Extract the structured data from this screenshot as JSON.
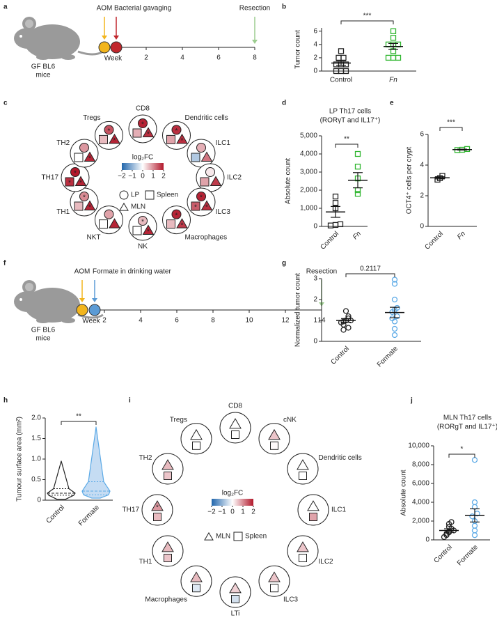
{
  "panel_labels": [
    "a",
    "b",
    "c",
    "d",
    "e",
    "f",
    "g",
    "h",
    "i",
    "j"
  ],
  "timelines": [
    {
      "mouse_label": [
        "GF BL6",
        "mice"
      ],
      "axis_label": "Week",
      "ticks": [
        2,
        4,
        6,
        8
      ],
      "events": [
        {
          "label": "AOM",
          "color": "#f2b51d"
        },
        {
          "label": "Bacterial gavaging",
          "color": "#c1272d"
        },
        {
          "label": "Resection",
          "color": "#9ccc8f"
        }
      ]
    },
    {
      "mouse_label": [
        "GF BL6",
        "mice"
      ],
      "axis_label": "Week",
      "ticks": [
        2,
        4,
        6,
        8,
        10,
        12,
        14
      ],
      "events": [
        {
          "label": "AOM",
          "color": "#f2b51d"
        },
        {
          "label": "Formate in drinking water",
          "color": "#5b9bd5"
        },
        {
          "label": "Resection",
          "color": "#9ccc8f"
        }
      ]
    }
  ],
  "chart_data": [
    {
      "type": "strip",
      "ylabel": "Tumor count",
      "ylim": [
        0,
        6.5
      ],
      "yticks": [
        0,
        2,
        4,
        6
      ],
      "significance": "***",
      "series": [
        {
          "name": "Control",
          "color": "#222222",
          "marker": "square",
          "values": [
            0,
            0,
            0,
            1,
            1,
            1,
            2,
            2,
            3
          ],
          "mean": 1.2,
          "sem": 0.35
        },
        {
          "name": "Fn",
          "italic": true,
          "color": "#2db52d",
          "marker": "square",
          "values": [
            2,
            2,
            2,
            3,
            4,
            4,
            4,
            5,
            6
          ],
          "mean": 3.7,
          "sem": 0.45
        }
      ]
    },
    {
      "type": "strip",
      "title": "LP Th17 cells",
      "subtitle": "(RORγT and IL17⁺)",
      "ylabel": "Absolute count",
      "ylim": [
        0,
        5000
      ],
      "yticks": [
        0,
        {
          "value": 1000,
          "label": "1,000"
        },
        {
          "value": 2000,
          "label": "2,000"
        },
        {
          "value": 3000,
          "label": "3,000"
        },
        {
          "value": 4000,
          "label": "4,000"
        },
        {
          "value": 5000,
          "label": "5,000"
        }
      ],
      "significance": "**",
      "series": [
        {
          "name": "Control",
          "color": "#222222",
          "marker": "square",
          "values": [
            50,
            80,
            120,
            1000,
            1300,
            1650
          ],
          "mean": 800,
          "sem": 300
        },
        {
          "name": "Fn",
          "italic": true,
          "color": "#2db52d",
          "marker": "square",
          "values": [
            1800,
            2000,
            2650,
            3300,
            4000
          ],
          "mean": 2550,
          "sem": 420
        }
      ]
    },
    {
      "type": "strip",
      "ylabel": "OCT4⁺ cells per crypt",
      "ylim": [
        0,
        6
      ],
      "yticks": [
        0,
        2,
        4,
        6
      ],
      "significance": "***",
      "series": [
        {
          "name": "Control",
          "color": "#222222",
          "marker": "square",
          "values": [
            3.05,
            3.15,
            3.3
          ],
          "mean": 3.17,
          "sem": 0.07
        },
        {
          "name": "Fn",
          "italic": true,
          "color": "#2db52d",
          "marker": "square",
          "values": [
            4.98,
            5.0,
            5.05
          ],
          "mean": 5.01,
          "sem": 0.03
        }
      ]
    },
    {
      "type": "strip",
      "ylabel": "Normalized tumor count",
      "ylim": [
        0,
        3
      ],
      "yticks": [
        0,
        1,
        2,
        3
      ],
      "significance": "0.2117",
      "series": [
        {
          "name": "Control",
          "color": "#222222",
          "marker": "circle",
          "values": [
            0.55,
            0.65,
            0.8,
            0.9,
            0.95,
            1.0,
            1.0,
            1.1,
            1.2,
            1.45
          ],
          "mean": 1.0,
          "sem": 0.09
        },
        {
          "name": "Formate",
          "color": "#5aa9e6",
          "marker": "circle",
          "values": [
            0.3,
            0.6,
            0.95,
            1.1,
            1.2,
            1.4,
            1.5,
            1.6,
            2.0,
            2.75,
            2.95
          ],
          "mean": 1.38,
          "sem": 0.25
        }
      ]
    },
    {
      "type": "violin",
      "ylabel": "Tumour surface area (mm²)",
      "ylim": [
        0,
        2
      ],
      "yticks": [
        0,
        0.5,
        {
          "value": 1,
          "label": "1.0"
        },
        1.5,
        {
          "value": 2,
          "label": "2.0"
        }
      ],
      "significance": "**",
      "series": [
        {
          "name": "Control",
          "color": "#222222",
          "fill": "#ffffff",
          "min": 0.02,
          "q1": 0.12,
          "median": 0.17,
          "q3": 0.28,
          "max": 0.95
        },
        {
          "name": "Formate",
          "color": "#5aa9e6",
          "fill": "#c5dcf3",
          "min": 0.05,
          "q1": 0.13,
          "median": 0.22,
          "q3": 0.45,
          "max": 1.78
        }
      ]
    },
    {
      "type": "strip",
      "title": "MLN Th17 cells",
      "subtitle": "(RORgT and IL17⁺)",
      "ylabel": "Absolute count",
      "ylim": [
        0,
        10000
      ],
      "yticks": [
        0,
        {
          "value": 2000,
          "label": "2,000"
        },
        {
          "value": 4000,
          "label": "4,000"
        },
        {
          "value": 6000,
          "label": "6,000"
        },
        {
          "value": 8000,
          "label": "8,000"
        },
        {
          "value": 10000,
          "label": "10,000"
        }
      ],
      "significance": "*",
      "series": [
        {
          "name": "Control",
          "color": "#222222",
          "marker": "circle",
          "values": [
            300,
            500,
            650,
            800,
            900,
            1000,
            1200,
            1400,
            1700,
            1900
          ],
          "mean": 1000,
          "sem": 180
        },
        {
          "name": "Formate",
          "color": "#5aa9e6",
          "marker": "circle",
          "values": [
            500,
            1000,
            1500,
            2000,
            2500,
            2800,
            3500,
            4000,
            8500
          ],
          "mean": 2600,
          "sem": 700
        }
      ]
    }
  ],
  "cell_diagrams": [
    {
      "colorbar": {
        "title": "log₂FC",
        "range": [
          -2,
          2
        ],
        "colors": [
          "#2166ac",
          "#ffffff",
          "#b2182b"
        ],
        "ticks": [
          {
            "value": -2,
            "label": "−2"
          },
          {
            "value": -1,
            "label": "−1"
          },
          0,
          1,
          2
        ]
      },
      "legend": [
        {
          "shape": "circle",
          "label": "LP"
        },
        {
          "shape": "square",
          "label": "Spleen"
        },
        {
          "shape": "triangle",
          "label": "MLN"
        }
      ],
      "nodes": [
        {
          "label": "CD8",
          "values": [
            1.9,
            0.7,
            1.8
          ],
          "stars": [
            "*",
            null,
            "*"
          ]
        },
        {
          "label": "Dendritic cells",
          "values": [
            1.8,
            0.8,
            1.8
          ],
          "stars": [
            "*",
            null,
            "*"
          ]
        },
        {
          "label": "ILC1",
          "values": [
            0.7,
            -0.7,
            1.2
          ],
          "stars": [
            null,
            null,
            null
          ]
        },
        {
          "label": "ILC2",
          "values": [
            0.2,
            0.8,
            1.7
          ],
          "stars": [
            null,
            null,
            null
          ]
        },
        {
          "label": "ILC3",
          "values": [
            1.9,
            1.4,
            1.8
          ],
          "stars": [
            "*",
            "*",
            "*"
          ]
        },
        {
          "label": "Macrophages",
          "values": [
            1.9,
            0.6,
            1.7
          ],
          "stars": [
            "*",
            null,
            "*"
          ]
        },
        {
          "label": "NK",
          "values": [
            0.6,
            0,
            1.9
          ],
          "stars": [
            "*",
            null,
            "*"
          ]
        },
        {
          "label": "NKT",
          "values": [
            0.8,
            0,
            1.9
          ],
          "stars": [
            null,
            null,
            null
          ]
        },
        {
          "label": "TH1",
          "values": [
            1.0,
            0.6,
            1.9
          ],
          "stars": [
            "*",
            null,
            "*"
          ]
        },
        {
          "label": "TH17",
          "values": [
            2.0,
            1.8,
            1.9
          ],
          "stars": [
            "*",
            "*",
            "*"
          ]
        },
        {
          "label": "TH2",
          "values": [
            0.9,
            0,
            1.9
          ],
          "stars": [
            null,
            null,
            "*"
          ]
        },
        {
          "label": "Tregs",
          "values": [
            1.5,
            0.6,
            1.9
          ],
          "stars": [
            "*",
            null,
            "*"
          ]
        }
      ]
    },
    {
      "colorbar": {
        "title": "log₂FC",
        "range": [
          -2,
          2
        ],
        "colors": [
          "#2166ac",
          "#ffffff",
          "#b2182b"
        ],
        "ticks": [
          {
            "value": -2,
            "label": "−2"
          },
          {
            "value": -1,
            "label": "−1"
          },
          0,
          1,
          2
        ]
      },
      "legend": [
        {
          "shape": "triangle",
          "label": "MLN"
        },
        {
          "shape": "square",
          "label": "Spleen"
        }
      ],
      "nodes": [
        {
          "label": "CD8",
          "values": [
            0,
            0
          ],
          "stars": [
            null,
            null
          ]
        },
        {
          "label": "cNK",
          "values": [
            0.5,
            0.05
          ],
          "stars": [
            null,
            null
          ]
        },
        {
          "label": "Dendritic cells",
          "values": [
            0,
            0
          ],
          "stars": [
            null,
            null
          ]
        },
        {
          "label": "ILC1",
          "values": [
            0,
            0.8
          ],
          "stars": [
            null,
            null
          ]
        },
        {
          "label": "ILC2",
          "values": [
            0.5,
            0
          ],
          "stars": [
            null,
            null
          ]
        },
        {
          "label": "ILC3",
          "values": [
            0.5,
            0
          ],
          "stars": [
            null,
            null
          ]
        },
        {
          "label": "LTi",
          "values": [
            0.4,
            -0.4
          ],
          "stars": [
            null,
            null
          ]
        },
        {
          "label": "Macrophages",
          "values": [
            0.6,
            -0.3
          ],
          "stars": [
            null,
            null
          ]
        },
        {
          "label": "TH1",
          "values": [
            0.6,
            0.5
          ],
          "stars": [
            null,
            null
          ]
        },
        {
          "label": "TH17",
          "values": [
            0.9,
            0.6
          ],
          "stars": [
            "*",
            null
          ]
        },
        {
          "label": "TH2",
          "values": [
            0.6,
            0.5
          ],
          "stars": [
            null,
            null
          ]
        },
        {
          "label": "Tregs",
          "values": [
            0,
            0
          ],
          "stars": [
            null,
            null
          ]
        }
      ]
    }
  ]
}
